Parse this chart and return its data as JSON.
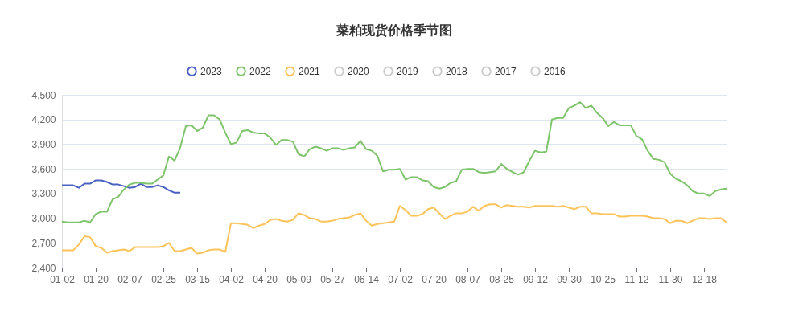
{
  "chart_data": {
    "type": "line",
    "title": "菜粕现货价格季节图",
    "categories": [
      "01-02",
      null,
      null,
      null,
      null,
      null,
      "01-20",
      null,
      null,
      null,
      null,
      null,
      "02-07",
      null,
      null,
      null,
      null,
      null,
      "02-25",
      null,
      null,
      null,
      null,
      null,
      "03-15",
      null,
      null,
      null,
      null,
      null,
      "04-02",
      null,
      null,
      null,
      null,
      null,
      "04-20",
      null,
      null,
      null,
      null,
      null,
      "05-09",
      null,
      null,
      null,
      null,
      null,
      "05-27",
      null,
      null,
      null,
      null,
      null,
      "06-14",
      null,
      null,
      null,
      null,
      null,
      "07-02",
      null,
      null,
      null,
      null,
      null,
      "07-20",
      null,
      null,
      null,
      null,
      null,
      "08-07",
      null,
      null,
      null,
      null,
      null,
      "08-25",
      null,
      null,
      null,
      null,
      null,
      "09-12",
      null,
      null,
      null,
      null,
      null,
      "09-30",
      null,
      null,
      null,
      null,
      null,
      "10-25",
      null,
      null,
      null,
      null,
      null,
      "11-12",
      null,
      null,
      null,
      null,
      null,
      "11-30",
      null,
      null,
      null,
      null,
      null,
      "12-18",
      null,
      null,
      null,
      null
    ],
    "series": [
      {
        "name": "2023",
        "color": "#4a62c2",
        "values": [
          3400,
          3400,
          3400,
          3370,
          3420,
          3420,
          3460,
          3460,
          3440,
          3410,
          3410,
          3390,
          3370,
          3380,
          3420,
          3380,
          3380,
          3400,
          3380,
          3340,
          3310,
          3310,
          null,
          null,
          null,
          null,
          null,
          null,
          null,
          null,
          null,
          null,
          null,
          null,
          null,
          null,
          null,
          null,
          null,
          null,
          null,
          null,
          null,
          null,
          null,
          null,
          null,
          null,
          null,
          null,
          null,
          null,
          null,
          null,
          null,
          null,
          null,
          null,
          null,
          null,
          null,
          null,
          null,
          null,
          null,
          null,
          null,
          null,
          null,
          null,
          null,
          null,
          null,
          null,
          null,
          null,
          null,
          null,
          null,
          null,
          null,
          null,
          null,
          null,
          null,
          null,
          null,
          null,
          null,
          null,
          null,
          null,
          null,
          null,
          null,
          null,
          null,
          null,
          null,
          null,
          null,
          null,
          null,
          null,
          null,
          null,
          null,
          null,
          null,
          null,
          null,
          null,
          null,
          null,
          null,
          null,
          null,
          null,
          null
        ]
      },
      {
        "name": "2022",
        "color": "#7ec46a",
        "values": [
          2960,
          2950,
          2950,
          2950,
          2970,
          2950,
          3050,
          3080,
          3080,
          3230,
          3260,
          3350,
          3410,
          3430,
          3430,
          3420,
          3420,
          3470,
          3520,
          3750,
          3700,
          3860,
          4120,
          4130,
          4060,
          4100,
          4250,
          4250,
          4200,
          4040,
          3900,
          3920,
          4060,
          4070,
          4040,
          4030,
          4030,
          3980,
          3890,
          3950,
          3950,
          3930,
          3780,
          3750,
          3840,
          3870,
          3850,
          3820,
          3850,
          3850,
          3830,
          3850,
          3860,
          3940,
          3840,
          3820,
          3760,
          3570,
          3590,
          3590,
          3600,
          3470,
          3500,
          3500,
          3460,
          3450,
          3380,
          3360,
          3380,
          3430,
          3450,
          3590,
          3600,
          3600,
          3560,
          3550,
          3560,
          3570,
          3660,
          3600,
          3560,
          3530,
          3560,
          3700,
          3820,
          3800,
          3810,
          4200,
          4220,
          4220,
          4340,
          4370,
          4410,
          4340,
          4370,
          4280,
          4220,
          4120,
          4170,
          4130,
          4130,
          4130,
          4000,
          3960,
          3820,
          3720,
          3710,
          3680,
          3540,
          3480,
          3450,
          3400,
          3330,
          3300,
          3300,
          3270,
          3330,
          3350,
          3360
        ]
      },
      {
        "name": "2021",
        "color": "#fbc35a",
        "values": [
          2610,
          2610,
          2610,
          2680,
          2780,
          2770,
          2660,
          2640,
          2580,
          2600,
          2610,
          2620,
          2600,
          2650,
          2650,
          2650,
          2650,
          2650,
          2660,
          2700,
          2600,
          2600,
          2620,
          2640,
          2570,
          2580,
          2610,
          2620,
          2620,
          2590,
          2940,
          2940,
          2930,
          2920,
          2880,
          2910,
          2930,
          2980,
          2990,
          2970,
          2960,
          2980,
          3060,
          3040,
          3000,
          2990,
          2960,
          2960,
          2970,
          2990,
          3000,
          3010,
          3040,
          3060,
          2970,
          2910,
          2930,
          2940,
          2950,
          2960,
          3150,
          3100,
          3030,
          3030,
          3050,
          3110,
          3130,
          3060,
          2990,
          3030,
          3060,
          3060,
          3080,
          3140,
          3090,
          3150,
          3170,
          3170,
          3130,
          3160,
          3150,
          3140,
          3140,
          3130,
          3150,
          3150,
          3150,
          3150,
          3140,
          3150,
          3130,
          3110,
          3140,
          3140,
          3060,
          3060,
          3050,
          3050,
          3050,
          3020,
          3020,
          3030,
          3030,
          3030,
          3020,
          3000,
          3000,
          2990,
          2940,
          2970,
          2970,
          2940,
          2970,
          3000,
          3000,
          2990,
          3000,
          3000,
          2950
        ]
      },
      {
        "name": "2020",
        "color": "#cccccc",
        "values": [
          null,
          null,
          null,
          null,
          null,
          null,
          null,
          null,
          null,
          null,
          null,
          null,
          null,
          null,
          null,
          null,
          null,
          null,
          null,
          null,
          null,
          null,
          null,
          null,
          null,
          null,
          null,
          null,
          null,
          null,
          null,
          null,
          null,
          null,
          null,
          null,
          null,
          null,
          null,
          null,
          null,
          null,
          null,
          null,
          null,
          null,
          null,
          null,
          null,
          null,
          null,
          null,
          null,
          null,
          null,
          null,
          null,
          null,
          null,
          null,
          null,
          null,
          null,
          null,
          null,
          null,
          null,
          null,
          null,
          null,
          null,
          null,
          null,
          null,
          null,
          null,
          null,
          null,
          null,
          null,
          null,
          null,
          null,
          null,
          null,
          null,
          null,
          null,
          null,
          null,
          null,
          null,
          null,
          null,
          null,
          null,
          null,
          null,
          null,
          null,
          null,
          null,
          null,
          null,
          null,
          null,
          null,
          null,
          null,
          null,
          null,
          null,
          null,
          null,
          null,
          null,
          null,
          null,
          null
        ]
      },
      {
        "name": "2019",
        "color": "#cccccc",
        "values": [
          null,
          null,
          null,
          null,
          null,
          null,
          null,
          null,
          null,
          null,
          null,
          null,
          null,
          null,
          null,
          null,
          null,
          null,
          null,
          null,
          null,
          null,
          null,
          null,
          null,
          null,
          null,
          null,
          null,
          null,
          null,
          null,
          null,
          null,
          null,
          null,
          null,
          null,
          null,
          null,
          null,
          null,
          null,
          null,
          null,
          null,
          null,
          null,
          null,
          null,
          null,
          null,
          null,
          null,
          null,
          null,
          null,
          null,
          null,
          null,
          null,
          null,
          null,
          null,
          null,
          null,
          null,
          null,
          null,
          null,
          null,
          null,
          null,
          null,
          null,
          null,
          null,
          null,
          null,
          null,
          null,
          null,
          null,
          null,
          null,
          null,
          null,
          null,
          null,
          null,
          null,
          null,
          null,
          null,
          null,
          null,
          null,
          null,
          null,
          null,
          null,
          null,
          null,
          null,
          null,
          null,
          null,
          null,
          null,
          null,
          null,
          null,
          null,
          null,
          null,
          null,
          null,
          null,
          null
        ]
      },
      {
        "name": "2018",
        "color": "#cccccc",
        "values": [
          null,
          null,
          null,
          null,
          null,
          null,
          null,
          null,
          null,
          null,
          null,
          null,
          null,
          null,
          null,
          null,
          null,
          null,
          null,
          null,
          null,
          null,
          null,
          null,
          null,
          null,
          null,
          null,
          null,
          null,
          null,
          null,
          null,
          null,
          null,
          null,
          null,
          null,
          null,
          null,
          null,
          null,
          null,
          null,
          null,
          null,
          null,
          null,
          null,
          null,
          null,
          null,
          null,
          null,
          null,
          null,
          null,
          null,
          null,
          null,
          null,
          null,
          null,
          null,
          null,
          null,
          null,
          null,
          null,
          null,
          null,
          null,
          null,
          null,
          null,
          null,
          null,
          null,
          null,
          null,
          null,
          null,
          null,
          null,
          null,
          null,
          null,
          null,
          null,
          null,
          null,
          null,
          null,
          null,
          null,
          null,
          null,
          null,
          null,
          null,
          null,
          null,
          null,
          null,
          null,
          null,
          null,
          null,
          null,
          null,
          null,
          null,
          null,
          null,
          null,
          null,
          null,
          null,
          null
        ]
      },
      {
        "name": "2017",
        "color": "#cccccc",
        "values": [
          null,
          null,
          null,
          null,
          null,
          null,
          null,
          null,
          null,
          null,
          null,
          null,
          null,
          null,
          null,
          null,
          null,
          null,
          null,
          null,
          null,
          null,
          null,
          null,
          null,
          null,
          null,
          null,
          null,
          null,
          null,
          null,
          null,
          null,
          null,
          null,
          null,
          null,
          null,
          null,
          null,
          null,
          null,
          null,
          null,
          null,
          null,
          null,
          null,
          null,
          null,
          null,
          null,
          null,
          null,
          null,
          null,
          null,
          null,
          null,
          null,
          null,
          null,
          null,
          null,
          null,
          null,
          null,
          null,
          null,
          null,
          null,
          null,
          null,
          null,
          null,
          null,
          null,
          null,
          null,
          null,
          null,
          null,
          null,
          null,
          null,
          null,
          null,
          null,
          null,
          null,
          null,
          null,
          null,
          null,
          null,
          null,
          null,
          null,
          null,
          null,
          null,
          null,
          null,
          null,
          null,
          null,
          null,
          null,
          null,
          null,
          null,
          null,
          null,
          null,
          null,
          null,
          null,
          null
        ]
      },
      {
        "name": "2016",
        "color": "#cccccc",
        "values": [
          null,
          null,
          null,
          null,
          null,
          null,
          null,
          null,
          null,
          null,
          null,
          null,
          null,
          null,
          null,
          null,
          null,
          null,
          null,
          null,
          null,
          null,
          null,
          null,
          null,
          null,
          null,
          null,
          null,
          null,
          null,
          null,
          null,
          null,
          null,
          null,
          null,
          null,
          null,
          null,
          null,
          null,
          null,
          null,
          null,
          null,
          null,
          null,
          null,
          null,
          null,
          null,
          null,
          null,
          null,
          null,
          null,
          null,
          null,
          null,
          null,
          null,
          null,
          null,
          null,
          null,
          null,
          null,
          null,
          null,
          null,
          null,
          null,
          null,
          null,
          null,
          null,
          null,
          null,
          null,
          null,
          null,
          null,
          null,
          null,
          null,
          null,
          null,
          null,
          null,
          null,
          null,
          null,
          null,
          null,
          null,
          null,
          null,
          null,
          null,
          null,
          null,
          null,
          null,
          null,
          null,
          null,
          null,
          null,
          null,
          null,
          null,
          null,
          null,
          null,
          null,
          null,
          null,
          null
        ]
      }
    ],
    "ylim": [
      2400,
      4500
    ],
    "yticks": [
      {
        "value": 2400,
        "label": "2,400"
      },
      {
        "value": 2700,
        "label": "2,700"
      },
      {
        "value": 3000,
        "label": "3,000"
      },
      {
        "value": 3300,
        "label": "3,300"
      },
      {
        "value": 3600,
        "label": "3,600"
      },
      {
        "value": 3900,
        "label": "3,900"
      },
      {
        "value": 4200,
        "label": "4,200"
      },
      {
        "value": 4500,
        "label": "4,500"
      }
    ],
    "grid": "y",
    "legend": "top",
    "marker": "none",
    "line_style": "solid"
  }
}
